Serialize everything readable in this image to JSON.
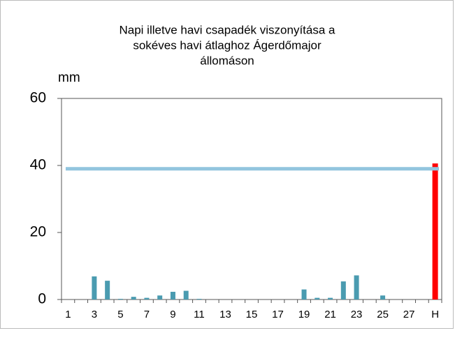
{
  "chart_data": {
    "type": "bar",
    "title": [
      "Napi illetve havi csapadék viszonyítása a",
      "sokéves havi átlaghoz Ágerdőmajor",
      "állomáson"
    ],
    "y_label": "mm",
    "categories": [
      "1",
      null,
      "3",
      null,
      "5",
      null,
      "7",
      null,
      "9",
      null,
      "11",
      null,
      "13",
      null,
      "15",
      null,
      "17",
      null,
      "19",
      null,
      "21",
      null,
      "23",
      null,
      "25",
      null,
      "27",
      null,
      "H"
    ],
    "values": [
      0,
      0,
      6.9,
      5.6,
      0.2,
      0.8,
      0.5,
      1.2,
      2.3,
      2.6,
      0.2,
      0,
      0,
      0,
      0,
      0,
      0,
      0,
      3,
      0.5,
      0.5,
      5.4,
      7.2,
      0,
      1.2,
      0,
      0,
      0,
      40.6
    ],
    "colors": [
      "#4a9bb0",
      "#4a9bb0",
      "#4a9bb0",
      "#4a9bb0",
      "#4a9bb0",
      "#4a9bb0",
      "#4a9bb0",
      "#4a9bb0",
      "#4a9bb0",
      "#4a9bb0",
      "#4a9bb0",
      "#4a9bb0",
      "#4a9bb0",
      "#4a9bb0",
      "#4a9bb0",
      "#4a9bb0",
      "#4a9bb0",
      "#4a9bb0",
      "#4a9bb0",
      "#4a9bb0",
      "#4a9bb0",
      "#4a9bb0",
      "#4a9bb0",
      "#4a9bb0",
      "#4a9bb0",
      "#4a9bb0",
      "#4a9bb0",
      "#4a9bb0",
      "#ff0000"
    ],
    "average_line": {
      "value": 39,
      "color": "#92c5de"
    },
    "ylim": [
      0,
      60
    ],
    "yticks": [
      0,
      20,
      40,
      60
    ]
  }
}
